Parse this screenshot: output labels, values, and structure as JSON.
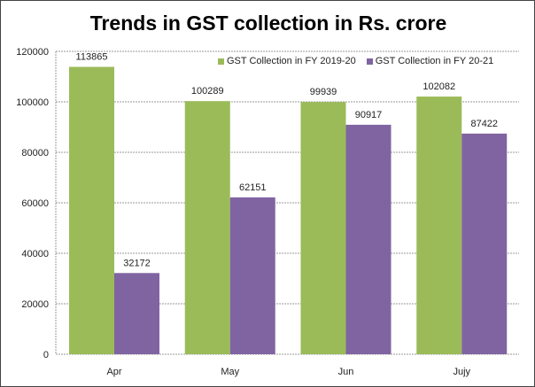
{
  "chart_data": {
    "type": "bar",
    "title": "Trends in GST collection in Rs. crore",
    "categories": [
      "Apr",
      "May",
      "Jun",
      "Jujy"
    ],
    "series": [
      {
        "name": "GST Collection in FY 2019-20",
        "values": [
          113865,
          100289,
          99939,
          102082
        ],
        "color": "#9bbb59"
      },
      {
        "name": "GST Collection in FY 20-21",
        "values": [
          32172,
          62151,
          90917,
          87422
        ],
        "color": "#8064a2"
      }
    ],
    "xlabel": "",
    "ylabel": "",
    "ylim": [
      0,
      120000
    ],
    "yticks": [
      0,
      20000,
      40000,
      60000,
      80000,
      100000,
      120000
    ],
    "grid": true,
    "legend": "top-right",
    "data_labels": true
  }
}
